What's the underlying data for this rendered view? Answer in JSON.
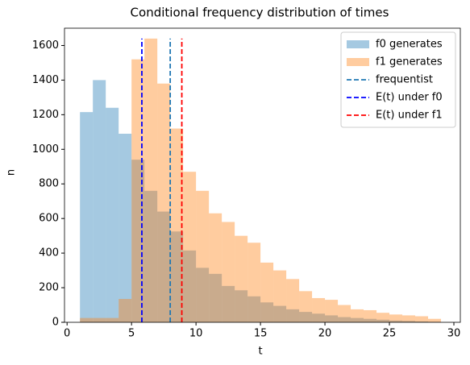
{
  "chart_data": {
    "type": "histogram",
    "title": "Conditional frequency distribution of times",
    "x_label": "t",
    "y_label": "n",
    "bins": [
      1,
      2,
      3,
      4,
      5,
      6,
      7,
      8,
      9,
      10,
      11,
      12,
      13,
      14,
      15,
      16,
      17,
      18,
      19,
      20,
      21,
      22,
      23,
      24,
      25,
      26,
      27,
      28,
      29
    ],
    "series": [
      {
        "name": "f0 generates",
        "color": "#1f77b4",
        "alpha": 0.4,
        "values": [
          1215,
          1400,
          1240,
          1090,
          940,
          760,
          640,
          525,
          415,
          315,
          280,
          210,
          185,
          150,
          115,
          95,
          75,
          60,
          50,
          40,
          30,
          25,
          20,
          15,
          10,
          8,
          5,
          3
        ]
      },
      {
        "name": "f1 generates",
        "color": "#ff7f0e",
        "alpha": 0.4,
        "values": [
          25,
          25,
          25,
          135,
          1520,
          1640,
          1380,
          1120,
          870,
          760,
          630,
          580,
          500,
          460,
          345,
          300,
          250,
          180,
          140,
          130,
          100,
          75,
          70,
          55,
          45,
          40,
          35,
          20
        ]
      }
    ],
    "vlines": [
      {
        "name": "frequentist",
        "color": "#1f77b4",
        "x": 8
      },
      {
        "name": "E(t) under f0",
        "color": "#0000ff",
        "x": 5.8
      },
      {
        "name": "E(t) under f1",
        "color": "#ff0000",
        "x": 8.9
      }
    ],
    "xlim": [
      -0.2,
      30.5
    ],
    "ylim": [
      0,
      1700
    ],
    "xticks": [
      0,
      5,
      10,
      15,
      20,
      25,
      30
    ],
    "yticks": [
      0,
      200,
      400,
      600,
      800,
      1000,
      1200,
      1400,
      1600
    ],
    "legend": "upper right"
  }
}
